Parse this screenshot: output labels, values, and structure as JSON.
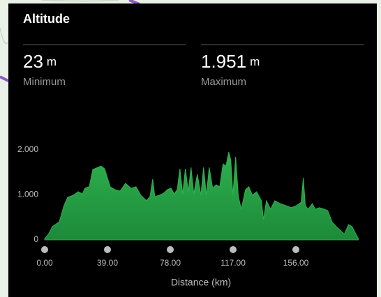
{
  "header": {
    "title": "Altitude"
  },
  "stats": [
    {
      "value": "23",
      "unit": "m",
      "label": "Minimum"
    },
    {
      "value": "1.951",
      "unit": "m",
      "label": "Maximum"
    }
  ],
  "chart_data": {
    "type": "area",
    "x_label": "Distance (km)",
    "color": "#2fb14e",
    "x": [
      0,
      2.6,
      4.8,
      9.1,
      12,
      14.3,
      17.7,
      20.8,
      23.4,
      25.1,
      27.7,
      29.9,
      35,
      37.2,
      40.7,
      43.7,
      46.8,
      50.2,
      53.7,
      56.7,
      59.7,
      63.2,
      65.4,
      67.1,
      68.4,
      71,
      74,
      76.2,
      78.4,
      80.5,
      82.3,
      84,
      85.7,
      87.4,
      89.2,
      90.9,
      92.6,
      94.8,
      97,
      98.7,
      100.4,
      102.2,
      104.3,
      106.5,
      108.7,
      110.8,
      112.6,
      114.3,
      115.6,
      116.9,
      118.6,
      120.3,
      122.1,
      124.7,
      126.8,
      129,
      131.6,
      134.6,
      135.9,
      137.7,
      140.3,
      142.9,
      146.3,
      149.8,
      153.2,
      156.3,
      159.3,
      160.6,
      161.9,
      163.6,
      166.2,
      168,
      170.6,
      173.6,
      175.8,
      178.4,
      181,
      183.5,
      186.1,
      188.7,
      190.9,
      193.1,
      194.8
    ],
    "values": [
      23,
      140,
      295,
      400,
      760,
      945,
      990,
      1070,
      1020,
      1150,
      1180,
      1565,
      1640,
      1580,
      1180,
      1115,
      1085,
      1255,
      1145,
      1180,
      990,
      870,
      960,
      1350,
      960,
      990,
      1040,
      1115,
      1150,
      1020,
      1115,
      1580,
      1020,
      1580,
      1070,
      1610,
      1020,
      1460,
      990,
      1610,
      990,
      1610,
      1150,
      1225,
      1180,
      1690,
      1640,
      1951,
      1770,
      990,
      1845,
      960,
      680,
      1115,
      1180,
      990,
      1070,
      870,
      450,
      870,
      680,
      870,
      805,
      760,
      715,
      760,
      835,
      1380,
      760,
      680,
      805,
      680,
      715,
      680,
      650,
      400,
      295,
      215,
      125,
      340,
      295,
      140,
      23
    ],
    "xlim": [
      0,
      195
    ],
    "xticks": [
      {
        "value": 0,
        "label": "0.00"
      },
      {
        "value": 39,
        "label": "39.00"
      },
      {
        "value": 78,
        "label": "78.00"
      },
      {
        "value": 117,
        "label": "117.00"
      },
      {
        "value": 156,
        "label": "156.00"
      }
    ],
    "ylim": [
      0,
      2000
    ],
    "yticks": [
      0,
      {
        "value": 1000,
        "label": "1.000"
      },
      {
        "value": 2000,
        "label": "2.000"
      }
    ]
  }
}
